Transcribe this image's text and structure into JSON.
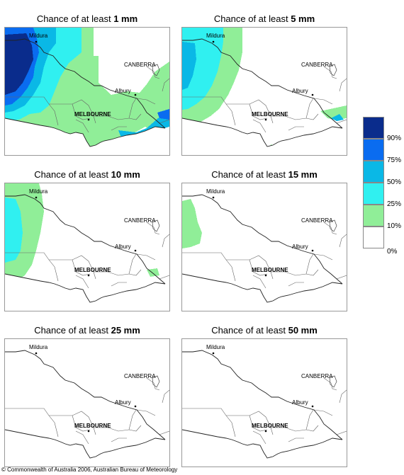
{
  "panels": [
    {
      "title_prefix": "Chance of at least ",
      "title_bold": "1 mm",
      "level": 0
    },
    {
      "title_prefix": "Chance of at least ",
      "title_bold": "5 mm",
      "level": 1
    },
    {
      "title_prefix": "Chance of at least ",
      "title_bold": "10 mm",
      "level": 2
    },
    {
      "title_prefix": "Chance of at least ",
      "title_bold": "15 mm",
      "level": 3
    },
    {
      "title_prefix": "Chance of at least ",
      "title_bold": "25 mm",
      "level": 4
    },
    {
      "title_prefix": "Chance of at least ",
      "title_bold": "50 mm",
      "level": 5
    }
  ],
  "places": {
    "mildura": "Mildura",
    "canberra": "CANBERRA",
    "albury": "Albury",
    "melbourne": "MELBOURNE"
  },
  "legend": {
    "labels": [
      "90%",
      "75%",
      "50%",
      "25%",
      "10%",
      "0%"
    ],
    "colors": [
      "#0a2c8c",
      "#0a6cf0",
      "#0ab8e6",
      "#30f0f0",
      "#90ee98",
      "#ffffff"
    ]
  },
  "copyright": "© Commonwealth of Australia 2006, Australian Bureau of Meteorology"
}
